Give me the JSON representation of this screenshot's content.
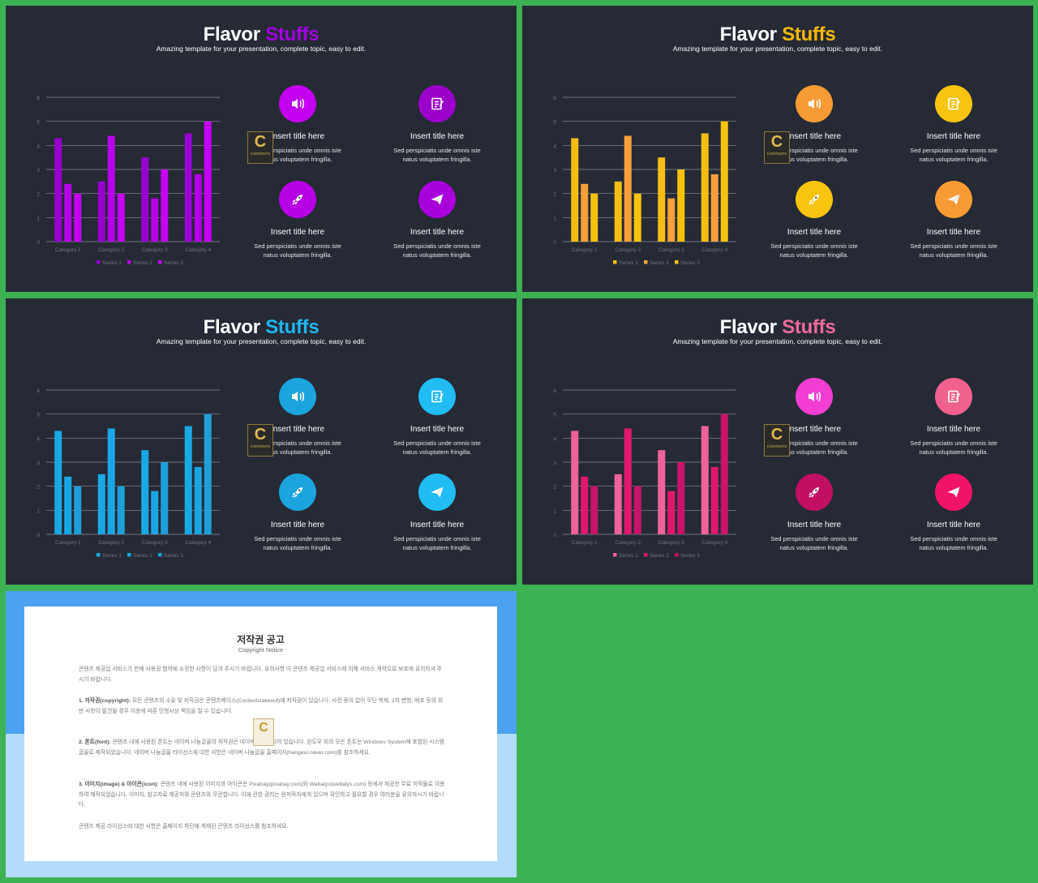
{
  "slides": [
    {
      "title_prefix": "Flavor",
      "title_accent": "Stuffs",
      "subtitle": "Amazing template for your presentation, complete topic, easy to edit.",
      "accent": "#a000e0",
      "series_colors": [
        "#9800cf",
        "#b300e6",
        "#c400f5"
      ],
      "icon_colors": [
        "#c200ef",
        "#9a00c9",
        "#b600e6",
        "#a700da"
      ]
    },
    {
      "title_prefix": "Flavor",
      "title_accent": "Stuffs",
      "subtitle": "Amazing template for your presentation, complete topic, easy to edit.",
      "accent": "#f5b800",
      "series_colors": [
        "#f6bd14",
        "#f5a03a",
        "#f7c20b"
      ],
      "icon_colors": [
        "#f79b35",
        "#f7c40f",
        "#f7c40f",
        "#f79b35"
      ]
    },
    {
      "title_prefix": "Flavor",
      "title_accent": "Stuffs",
      "subtitle": "Amazing template for your presentation, complete topic, easy to edit.",
      "accent": "#1fb6f2",
      "series_colors": [
        "#18a8e4",
        "#1aa6e6",
        "#1e9fd9"
      ],
      "icon_colors": [
        "#1ba4de",
        "#20bcf3",
        "#1ba4de",
        "#20bcf3"
      ]
    },
    {
      "title_prefix": "Flavor",
      "title_accent": "Stuffs",
      "subtitle": "Amazing template for your presentation, complete topic, easy to edit.",
      "accent": "#f06a9a",
      "series_colors": [
        "#f0629a",
        "#e0186d",
        "#c8146a"
      ],
      "icon_colors": [
        "#f23ed2",
        "#f0628d",
        "#c10f64",
        "#f01368"
      ]
    }
  ],
  "chart_data": {
    "type": "bar",
    "categories": [
      "Category 1",
      "Category 2",
      "Category 3",
      "Category 4"
    ],
    "series": [
      {
        "name": "Series 1",
        "values": [
          4.3,
          2.5,
          3.5,
          4.5
        ]
      },
      {
        "name": "Series 2",
        "values": [
          2.4,
          4.4,
          1.8,
          2.8
        ]
      },
      {
        "name": "Series 3",
        "values": [
          2,
          2,
          3,
          5
        ]
      }
    ],
    "ylim": [
      0,
      6
    ],
    "yticks": [
      "0",
      "1",
      "2",
      "3",
      "4",
      "5",
      "6"
    ],
    "grid": true,
    "legend": "bottom"
  },
  "features": [
    {
      "icon": "speaker-icon",
      "title": "Insert title here",
      "desc": "Sed perspiciatis unde omnis iste\nnatus voluptatem fringilla."
    },
    {
      "icon": "note-icon",
      "title": "Insert title here",
      "desc": "Sed perspiciatis unde omnis iste\nnatus voluptatem fringilla."
    },
    {
      "icon": "rocket-icon",
      "title": "Insert title here",
      "desc": "Sed perspiciatis unde omnis iste\nnatus voluptatem fringilla."
    },
    {
      "icon": "paper-plane-icon",
      "title": "Insert title here",
      "desc": "Sed perspiciatis unde omnis iste\nnatus voluptatem fringilla."
    }
  ],
  "badge": {
    "letter": "C",
    "text": "CONTENTS"
  },
  "copyright": {
    "title": "저작권 공고",
    "subtitle": "Copyright Notice",
    "intro": "콘텐츠 제공업 서비스가 판매 사용권 협약에 소정한 사항이 담겨 주시기 바랍니다. 유의사항 이 콘텐츠 제공업 서비스에 의해 서비스 계약으로 보호에 유의하셔 주시기 바랍니다.",
    "p1_label": "1. 저작권(copyright):",
    "p1": " 모든 콘텐츠의 소유 및 저작권은 콘텐츠베이스(Contentstakeout)에 저작권이 있습니다. 사전 동의 없이 무단 복제, 2차 변형, 배포 등의 위반 사항이 발견될 경우 이용에 따른 민형사상 책임을 질 수 있습니다.",
    "p2_label": "2. 폰트(font):",
    "p2": " 콘텐츠 내에 사용된 폰트는 네이버 나눔글꼴의 저작권은 네이버에 귀속되어 있습니다. 윈도우 외의 모든 폰트는 Windows System에 포함된 시스템 글꼴로 제작되었습니다. 네이버 나눔글꼴 라이선스에 대한 사항은 네이버 나눔글꼴 홈페이지(hangeul.naver.com)를 참조하세요.",
    "p3_label": "3. 이미지(image) & 아이콘(icon):",
    "p3": " 콘텐츠 내에 사용된 이미지와 아이콘은 Pixabay(pixabay.com)와 Webalys(webalys.com) 등에서 제공한 무료 저작물로 이용하여 제작되었습니다. 이미지, 참고자료 제공처와 콘텐츠와 무관합니다. 이에 관한 권리는 원저작자에게 있으며 확인하고 필요할 경우 여러분을 유의하시기 바랍니다.",
    "outro": "콘텐츠 제공 라이선스에 대한 사항은 홈페이지 하단에 게재된 콘텐츠 라이선스를 참조하세요."
  }
}
